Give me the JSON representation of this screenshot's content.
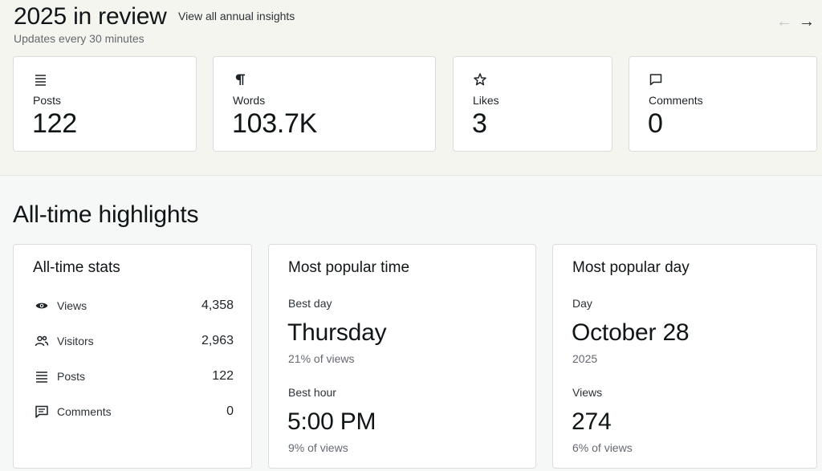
{
  "header": {
    "title": "2025 in review",
    "link": "View all annual insights",
    "subtitle": "Updates every 30 minutes",
    "prev_arrow": "←",
    "next_arrow": "→"
  },
  "year_stats": [
    {
      "label": "Posts",
      "value": "122",
      "icon": "posts-list-icon"
    },
    {
      "label": "Words",
      "value": "103.7K",
      "icon": "pilcrow-icon"
    },
    {
      "label": "Likes",
      "value": "3",
      "icon": "star-icon"
    },
    {
      "label": "Comments",
      "value": "0",
      "icon": "comment-icon"
    }
  ],
  "highlights": {
    "title": "All-time highlights",
    "all_time_stats": {
      "title": "All-time stats",
      "rows": [
        {
          "label": "Views",
          "value": "4,358",
          "icon": "eye-icon"
        },
        {
          "label": "Visitors",
          "value": "2,963",
          "icon": "people-icon"
        },
        {
          "label": "Posts",
          "value": "122",
          "icon": "posts-list-icon"
        },
        {
          "label": "Comments",
          "value": "0",
          "icon": "comment-icon"
        }
      ]
    },
    "popular_time": {
      "title": "Most popular time",
      "day_label": "Best day",
      "day_value": "Thursday",
      "day_note": "21% of views",
      "hour_label": "Best hour",
      "hour_value": "5:00 PM",
      "hour_note": "9% of views"
    },
    "popular_day": {
      "title": "Most popular day",
      "day_label": "Day",
      "day_value": "October 28",
      "day_note": "2025",
      "views_label": "Views",
      "views_value": "274",
      "views_note": "6% of views"
    }
  }
}
